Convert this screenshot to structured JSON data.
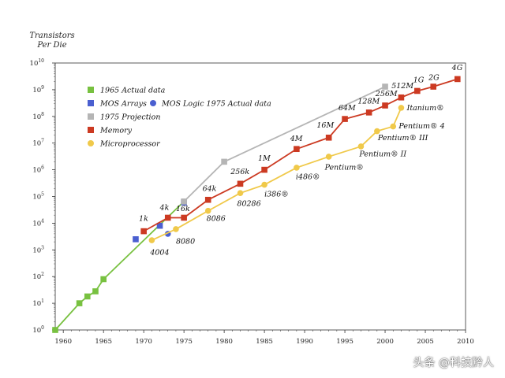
{
  "chart_data": {
    "type": "line",
    "ylabel_line1": "Transistors",
    "ylabel_line2": "Per Die",
    "xlim": [
      1959,
      2010
    ],
    "ylim_exponent": [
      0,
      10
    ],
    "yscale": "log10",
    "x_ticks": [
      "1960",
      "1965",
      "1970",
      "1975",
      "1980",
      "1985",
      "1990",
      "1995",
      "2000",
      "2005",
      "2010"
    ],
    "y_tick_base": "10",
    "y_tick_exponents": [
      "0",
      "1",
      "2",
      "3",
      "4",
      "5",
      "6",
      "7",
      "8",
      "9",
      "10"
    ],
    "legend": [
      {
        "label": "1965 Actual data",
        "marker": "square",
        "color": "#78c140"
      },
      {
        "label": "MOS Arrays",
        "marker": "square",
        "color": "#4a5fd0"
      },
      {
        "label": "MOS Logic 1975 Actual data",
        "marker": "circle",
        "color": "#4a5fd0"
      },
      {
        "label": "1975 Projection",
        "marker": "square",
        "color": "#b5b5b5"
      },
      {
        "label": "Memory",
        "marker": "square",
        "color": "#cc3a22"
      },
      {
        "label": "Microprocessor",
        "marker": "circle",
        "color": "#f0c94a"
      }
    ],
    "series": [
      {
        "key": "actual1965",
        "color": "#78c140",
        "marker": "square",
        "line": true,
        "points": [
          [
            1959,
            1
          ],
          [
            1962,
            10
          ],
          [
            1963,
            18
          ],
          [
            1964,
            28
          ],
          [
            1965,
            80
          ]
        ]
      },
      {
        "key": "trend1965",
        "color": "#78c140",
        "marker": "none",
        "line": true,
        "points": [
          [
            1965,
            80
          ],
          [
            1975,
            65000
          ]
        ]
      },
      {
        "key": "mos_arrays",
        "color": "#4a5fd0",
        "marker": "square",
        "line": false,
        "points": [
          [
            1969,
            2500
          ],
          [
            1972,
            8000
          ],
          [
            1975,
            60000
          ]
        ]
      },
      {
        "key": "mos_logic",
        "color": "#4a5fd0",
        "marker": "circle",
        "line": false,
        "points": [
          [
            1973,
            4000
          ]
        ]
      },
      {
        "key": "projection1975",
        "color": "#b5b5b5",
        "marker": "square",
        "line": true,
        "points": [
          [
            1975,
            65000
          ],
          [
            1980,
            2000000
          ],
          [
            2000,
            1300000000
          ]
        ]
      },
      {
        "key": "memory",
        "color": "#cc3a22",
        "marker": "square",
        "line": true,
        "points": [
          [
            1970,
            5000
          ],
          [
            1973,
            16000
          ],
          [
            1975,
            16000
          ],
          [
            1978,
            75000
          ],
          [
            1982,
            300000
          ],
          [
            1985,
            1000000
          ],
          [
            1989,
            6000000
          ],
          [
            1993,
            16000000
          ],
          [
            1995,
            80000000
          ],
          [
            1998,
            140000000
          ],
          [
            2000,
            256000000
          ],
          [
            2002,
            512000000
          ],
          [
            2004,
            900000000
          ],
          [
            2006,
            1300000000
          ],
          [
            2009,
            2500000000
          ]
        ]
      },
      {
        "key": "microprocessor",
        "color": "#f0c94a",
        "marker": "circle",
        "line": true,
        "points": [
          [
            1971,
            2300
          ],
          [
            1974,
            6000
          ],
          [
            1978,
            29000
          ],
          [
            1982,
            134000
          ],
          [
            1985,
            275000
          ],
          [
            1989,
            1200000
          ],
          [
            1993,
            3100000
          ],
          [
            1997,
            7500000
          ],
          [
            1999,
            28000000
          ],
          [
            2001,
            42000000
          ],
          [
            2002,
            210000000
          ]
        ]
      }
    ],
    "annotations": [
      {
        "text": "1k",
        "x": 1969.4,
        "y": 12000
      },
      {
        "text": "4k",
        "x": 1972.0,
        "y": 32000
      },
      {
        "text": "16k",
        "x": 1974.0,
        "y": 28000
      },
      {
        "text": "64k",
        "x": 1977.3,
        "y": 160000
      },
      {
        "text": "256k",
        "x": 1980.8,
        "y": 700000
      },
      {
        "text": "1M",
        "x": 1984.2,
        "y": 2200000
      },
      {
        "text": "4M",
        "x": 1988.2,
        "y": 12000000
      },
      {
        "text": "16M",
        "x": 1991.5,
        "y": 38000000
      },
      {
        "text": "64M",
        "x": 1994.2,
        "y": 170000000
      },
      {
        "text": "128M",
        "x": 1996.6,
        "y": 300000000
      },
      {
        "text": "256M",
        "x": 1998.8,
        "y": 580000000
      },
      {
        "text": "512M",
        "x": 2000.8,
        "y": 1150000000
      },
      {
        "text": "1G",
        "x": 2003.5,
        "y": 1900000000
      },
      {
        "text": "2G",
        "x": 2005.4,
        "y": 2300000000
      },
      {
        "text": "4G",
        "x": 2008.3,
        "y": 5400000000
      },
      {
        "text": "4004",
        "x": 1970.8,
        "y": 650
      },
      {
        "text": "8080",
        "x": 1974.0,
        "y": 1700
      },
      {
        "text": "8086",
        "x": 1977.8,
        "y": 12000
      },
      {
        "text": "80286",
        "x": 1981.6,
        "y": 45000
      },
      {
        "text": "i386®",
        "x": 1985.0,
        "y": 100000
      },
      {
        "text": "i486®",
        "x": 1988.9,
        "y": 440000
      },
      {
        "text": "Pentium®",
        "x": 1992.5,
        "y": 1000000
      },
      {
        "text": "Pentium® II",
        "x": 1996.8,
        "y": 3200000
      },
      {
        "text": "Pentium® III",
        "x": 1999.1,
        "y": 13000000
      },
      {
        "text": "Pentium® 4",
        "x": 2001.7,
        "y": 36000000
      },
      {
        "text": "Itanium®",
        "x": 2002.7,
        "y": 170000000
      }
    ],
    "grid": false,
    "legend_position": "top-left"
  },
  "watermark": "头条 @科技黔人"
}
